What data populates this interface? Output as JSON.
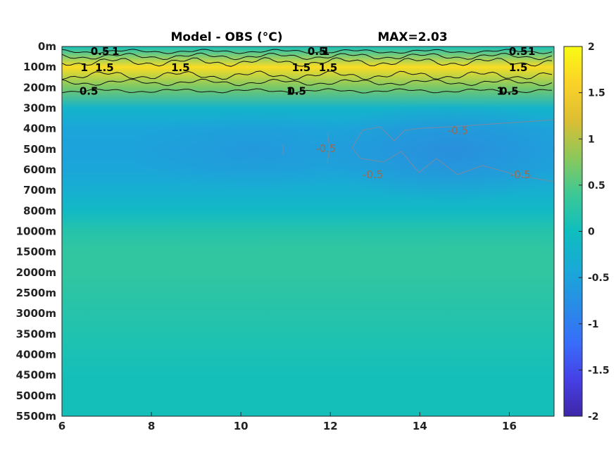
{
  "chart_data": {
    "type": "heatmap",
    "title_left": "Model - OBS (°C)",
    "title_right": "MAX=2.03",
    "x_ticks": [
      6,
      8,
      10,
      12,
      14,
      16
    ],
    "xlim": [
      6,
      17
    ],
    "y_ticks": [
      "0m",
      "100m",
      "200m",
      "300m",
      "400m",
      "500m",
      "600m",
      "700m",
      "800m",
      "1000m",
      "1500m",
      "2000m",
      "2500m",
      "3000m",
      "3500m",
      "4000m",
      "4500m",
      "5000m",
      "5500m"
    ],
    "colorbar": {
      "ticks": [
        2,
        1.5,
        1,
        0.5,
        0,
        -0.5,
        -1,
        -1.5,
        -2
      ],
      "labels": [
        "2",
        "1.5",
        "1",
        "0.5",
        "0",
        "-0.5",
        "-1",
        "-1.5",
        "-2"
      ],
      "range": [
        -2,
        2
      ],
      "colormap": "parula"
    },
    "depth_profile": [
      {
        "depth": "0m",
        "value": 0.05
      },
      {
        "depth": "100m",
        "value": 1.7
      },
      {
        "depth": "200m",
        "value": 0.7
      },
      {
        "depth": "300m",
        "value": -0.2
      },
      {
        "depth": "400m",
        "value": -0.45
      },
      {
        "depth": "500m",
        "value": -0.5
      },
      {
        "depth": "600m",
        "value": -0.45
      },
      {
        "depth": "700m",
        "value": -0.3
      },
      {
        "depth": "800m",
        "value": -0.1
      },
      {
        "depth": "1000m",
        "value": 0.2
      },
      {
        "depth": "1500m",
        "value": 0.3
      },
      {
        "depth": "2000m",
        "value": 0.3
      },
      {
        "depth": "2500m",
        "value": 0.25
      },
      {
        "depth": "3000m",
        "value": 0.2
      },
      {
        "depth": "3500m",
        "value": 0.15
      },
      {
        "depth": "4000m",
        "value": 0.1
      },
      {
        "depth": "4500m",
        "value": 0.05
      },
      {
        "depth": "5000m",
        "value": 0.05
      },
      {
        "depth": "5500m",
        "value": 0.05
      }
    ],
    "contour_labels": [
      {
        "text": "0.5",
        "x": 6.85,
        "y": "0m",
        "style": "black"
      },
      {
        "text": "1",
        "x": 7.2,
        "y": "0m",
        "style": "black"
      },
      {
        "text": "1.5",
        "x": 6.95,
        "y": "100m",
        "style": "black"
      },
      {
        "text": "1",
        "x": 6.5,
        "y": "100m",
        "style": "black"
      },
      {
        "text": "0.5",
        "x": 6.6,
        "y": "200m",
        "style": "black"
      },
      {
        "text": "1.5",
        "x": 8.65,
        "y": "100m",
        "style": "black"
      },
      {
        "text": "0.5",
        "x": 11.7,
        "y": "0m",
        "style": "black"
      },
      {
        "text": "1",
        "x": 11.9,
        "y": "0m",
        "style": "black"
      },
      {
        "text": "1.5",
        "x": 11.35,
        "y": "100m",
        "style": "black"
      },
      {
        "text": "1.5",
        "x": 11.95,
        "y": "100m",
        "style": "black"
      },
      {
        "text": "1",
        "x": 11.1,
        "y": "200m",
        "style": "black"
      },
      {
        "text": "0.5",
        "x": 11.25,
        "y": "200m",
        "style": "black"
      },
      {
        "text": "0.5",
        "x": 16.2,
        "y": "0m",
        "style": "black"
      },
      {
        "text": "1",
        "x": 16.5,
        "y": "0m",
        "style": "black"
      },
      {
        "text": "1.5",
        "x": 16.2,
        "y": "100m",
        "style": "black"
      },
      {
        "text": "1",
        "x": 15.8,
        "y": "200m",
        "style": "black"
      },
      {
        "text": "0.5",
        "x": 16.0,
        "y": "200m",
        "style": "black"
      },
      {
        "text": "-0.5",
        "x": 14.85,
        "y": "400m",
        "style": "gray"
      },
      {
        "text": "-0.5",
        "x": 12.95,
        "y": "600m",
        "style": "gray"
      },
      {
        "text": "-0.5",
        "x": 16.25,
        "y": "600m",
        "style": "gray"
      },
      {
        "text": "-0.5",
        "x": 11.9,
        "y": "500m",
        "style": "gray"
      }
    ]
  }
}
